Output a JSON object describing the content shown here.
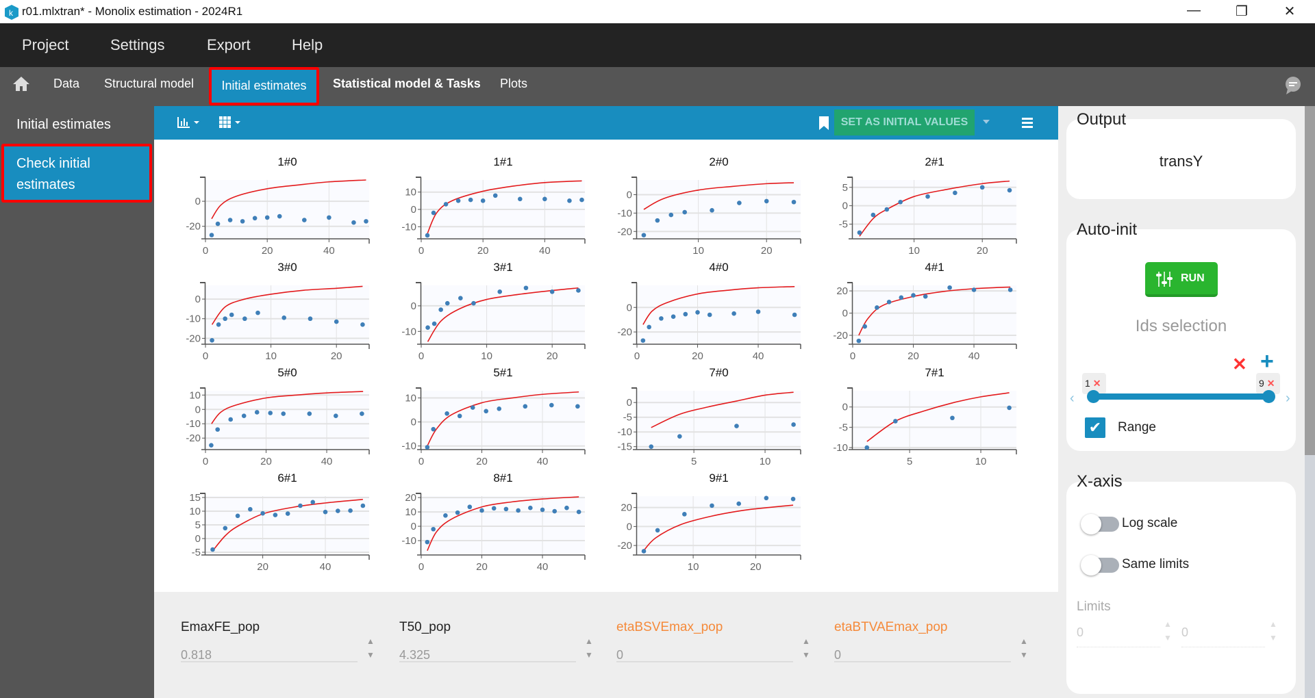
{
  "window": {
    "title": "r01.mlxtran* - Monolix estimation - 2024R1",
    "minimize": "—",
    "restore": "❐",
    "close": "✕"
  },
  "menu": [
    "Project",
    "Settings",
    "Export",
    "Help"
  ],
  "nav": {
    "home_icon": "home-icon",
    "items": [
      "Data",
      "Structural model",
      "Initial estimates",
      "Statistical model & Tasks",
      "Plots"
    ],
    "active": "Initial estimates"
  },
  "sidebar": {
    "title": "Initial estimates",
    "active_item": "Check initial estimates"
  },
  "toolbar": {
    "set_initial_label": "SET AS INITIAL VALUES",
    "colors": {
      "toolbar": "#188dbf",
      "set_button": "#21a46f"
    }
  },
  "params": [
    {
      "name": "EmaxFE_pop",
      "value": "0.818",
      "color": "#222222"
    },
    {
      "name": "T50_pop",
      "value": "4.325",
      "color": "#222222"
    },
    {
      "name": "etaBSVEmax_pop",
      "value": "0",
      "color": "#f58a3a"
    },
    {
      "name": "etaBTVAEmax_pop",
      "value": "0",
      "color": "#f58a3a"
    }
  ],
  "right": {
    "output": {
      "title": "Output",
      "value": "transY"
    },
    "autoinit": {
      "title": "Auto-init",
      "run": "RUN",
      "ids_title": "Ids selection",
      "range_min": "1",
      "range_max": "9",
      "range_label": "Range",
      "range_checked": true
    },
    "xaxis": {
      "title": "X-axis",
      "log_scale": "Log scale",
      "log_scale_on": false,
      "same_limits": "Same limits",
      "same_limits_on": false,
      "limits_label": "Limits",
      "limit_min": "0",
      "limit_max": "0"
    }
  },
  "chart_data": [
    {
      "type": "scatter",
      "title": "1#0",
      "xlim": [
        0,
        53
      ],
      "ylim": [
        -30,
        17
      ],
      "xticks": [
        0,
        20,
        40
      ],
      "yticks": [
        0,
        -20
      ],
      "points": [
        [
          2,
          -27
        ],
        [
          4,
          -18
        ],
        [
          8,
          -15
        ],
        [
          12,
          -16
        ],
        [
          16,
          -13.5
        ],
        [
          20,
          -13
        ],
        [
          24,
          -12
        ],
        [
          32,
          -15
        ],
        [
          40,
          -13
        ],
        [
          48,
          -17
        ],
        [
          52,
          -16
        ]
      ],
      "curve": [
        [
          2,
          -14
        ],
        [
          5,
          -3
        ],
        [
          10,
          4
        ],
        [
          20,
          10
        ],
        [
          30,
          13
        ],
        [
          40,
          15.5
        ],
        [
          52,
          17
        ]
      ]
    },
    {
      "type": "scatter",
      "title": "1#1",
      "xlim": [
        0,
        53
      ],
      "ylim": [
        -17,
        17
      ],
      "xticks": [
        0,
        20,
        40
      ],
      "yticks": [
        10,
        0,
        -10
      ],
      "points": [
        [
          2,
          -15
        ],
        [
          4,
          -2
        ],
        [
          8,
          3
        ],
        [
          12,
          5
        ],
        [
          16,
          5.5
        ],
        [
          20,
          5
        ],
        [
          24,
          8
        ],
        [
          32,
          6
        ],
        [
          40,
          6
        ],
        [
          48,
          5
        ],
        [
          52,
          5.5
        ]
      ],
      "curve": [
        [
          2,
          -14
        ],
        [
          5,
          -2
        ],
        [
          10,
          5
        ],
        [
          20,
          10.5
        ],
        [
          30,
          13.5
        ],
        [
          40,
          15.5
        ],
        [
          52,
          16.5
        ]
      ]
    },
    {
      "type": "scatter",
      "title": "2#0",
      "xlim": [
        1,
        25
      ],
      "ylim": [
        -24,
        8
      ],
      "xticks": [
        10,
        20
      ],
      "yticks": [
        0,
        -10,
        -20
      ],
      "points": [
        [
          2,
          -22
        ],
        [
          4,
          -14
        ],
        [
          6,
          -11
        ],
        [
          8,
          -9.5
        ],
        [
          12,
          -8.5
        ],
        [
          16,
          -4.5
        ],
        [
          20,
          -3.5
        ],
        [
          24,
          -4
        ]
      ],
      "curve": [
        [
          2,
          -8
        ],
        [
          5,
          -2
        ],
        [
          10,
          2.5
        ],
        [
          15,
          4.5
        ],
        [
          20,
          6
        ],
        [
          24,
          6.5
        ]
      ]
    },
    {
      "type": "scatter",
      "title": "2#1",
      "xlim": [
        1,
        25
      ],
      "ylim": [
        -9,
        7
      ],
      "xticks": [
        10,
        20
      ],
      "yticks": [
        5,
        0,
        -5
      ],
      "points": [
        [
          2,
          -7.3
        ],
        [
          4,
          -2.5
        ],
        [
          6,
          -1
        ],
        [
          8,
          1
        ],
        [
          12,
          2.5
        ],
        [
          16,
          3.5
        ],
        [
          20,
          5
        ],
        [
          24,
          4.2
        ]
      ],
      "curve": [
        [
          2,
          -8.3
        ],
        [
          4,
          -3.5
        ],
        [
          6,
          -1
        ],
        [
          10,
          2.5
        ],
        [
          15,
          4.5
        ],
        [
          20,
          6
        ],
        [
          24,
          6.7
        ]
      ]
    },
    {
      "type": "scatter",
      "title": "3#0",
      "xlim": [
        0,
        25
      ],
      "ylim": [
        -23,
        7
      ],
      "xticks": [
        0,
        10,
        20
      ],
      "yticks": [
        0,
        -10,
        -20
      ],
      "points": [
        [
          1,
          -21
        ],
        [
          2,
          -13
        ],
        [
          3,
          -10
        ],
        [
          4,
          -8
        ],
        [
          6,
          -10
        ],
        [
          8,
          -7
        ],
        [
          12,
          -9.5
        ],
        [
          16,
          -10
        ],
        [
          20,
          -11.5
        ],
        [
          24,
          -13
        ]
      ],
      "curve": [
        [
          1,
          -13
        ],
        [
          3,
          -4
        ],
        [
          6,
          0
        ],
        [
          10,
          2.5
        ],
        [
          15,
          4.5
        ],
        [
          20,
          5.5
        ],
        [
          24,
          6.5
        ]
      ]
    },
    {
      "type": "scatter",
      "title": "3#1",
      "xlim": [
        0,
        25
      ],
      "ylim": [
        -15,
        8
      ],
      "xticks": [
        0,
        10,
        20
      ],
      "yticks": [
        0,
        -10
      ],
      "points": [
        [
          1,
          -8.5
        ],
        [
          2,
          -7
        ],
        [
          3,
          -1.5
        ],
        [
          4,
          1
        ],
        [
          6,
          3
        ],
        [
          8,
          1
        ],
        [
          12,
          5.5
        ],
        [
          16,
          7
        ],
        [
          20,
          5.5
        ],
        [
          24,
          6
        ]
      ],
      "curve": [
        [
          1,
          -14
        ],
        [
          3,
          -6
        ],
        [
          6,
          -1
        ],
        [
          10,
          2.5
        ],
        [
          15,
          4.5
        ],
        [
          20,
          6
        ],
        [
          24,
          7
        ]
      ]
    },
    {
      "type": "scatter",
      "title": "4#0",
      "xlim": [
        0,
        54
      ],
      "ylim": [
        -30,
        18
      ],
      "xticks": [
        0,
        20,
        40
      ],
      "yticks": [
        0,
        -20
      ],
      "points": [
        [
          2,
          -27
        ],
        [
          4,
          -16
        ],
        [
          8,
          -9
        ],
        [
          12,
          -7.5
        ],
        [
          16,
          -5.5
        ],
        [
          20,
          -4
        ],
        [
          24,
          -6
        ],
        [
          32,
          -5
        ],
        [
          40,
          -3.5
        ],
        [
          52,
          -6
        ]
      ],
      "curve": [
        [
          2,
          -14
        ],
        [
          5,
          -3
        ],
        [
          10,
          4
        ],
        [
          20,
          11
        ],
        [
          30,
          14
        ],
        [
          40,
          16
        ],
        [
          52,
          17
        ]
      ]
    },
    {
      "type": "scatter",
      "title": "4#1",
      "xlim": [
        0,
        54
      ],
      "ylim": [
        -28,
        25
      ],
      "xticks": [
        0,
        20,
        40
      ],
      "yticks": [
        20,
        0,
        -20
      ],
      "points": [
        [
          2,
          -25
        ],
        [
          4,
          -12
        ],
        [
          8,
          5
        ],
        [
          12,
          10
        ],
        [
          16,
          14
        ],
        [
          20,
          16
        ],
        [
          24,
          15
        ],
        [
          32,
          23
        ],
        [
          40,
          21
        ],
        [
          52,
          21
        ]
      ],
      "curve": [
        [
          2,
          -20
        ],
        [
          5,
          -5
        ],
        [
          10,
          7
        ],
        [
          20,
          15
        ],
        [
          30,
          19.5
        ],
        [
          40,
          22
        ],
        [
          52,
          23.5
        ]
      ]
    },
    {
      "type": "scatter",
      "title": "5#0",
      "xlim": [
        0,
        54
      ],
      "ylim": [
        -28,
        13
      ],
      "xticks": [
        0,
        20,
        40
      ],
      "yticks": [
        10,
        0,
        -10,
        -20
      ],
      "points": [
        [
          1.9,
          -25
        ],
        [
          4,
          -14
        ],
        [
          8.3,
          -7
        ],
        [
          12.7,
          -4.5
        ],
        [
          17,
          -2
        ],
        [
          21.4,
          -2.5
        ],
        [
          25.7,
          -3
        ],
        [
          34.3,
          -3
        ],
        [
          43,
          -4.5
        ],
        [
          51.6,
          -3
        ]
      ],
      "curve": [
        [
          2,
          -10
        ],
        [
          5,
          -2
        ],
        [
          10,
          3
        ],
        [
          20,
          8
        ],
        [
          30,
          10
        ],
        [
          40,
          11.5
        ],
        [
          52,
          12.5
        ]
      ]
    },
    {
      "type": "scatter",
      "title": "5#1",
      "xlim": [
        0,
        54
      ],
      "ylim": [
        -11.5,
        13
      ],
      "xticks": [
        0,
        20,
        40
      ],
      "yticks": [
        10,
        0,
        -10
      ],
      "points": [
        [
          2,
          -10.5
        ],
        [
          4,
          -3
        ],
        [
          8.5,
          3.5
        ],
        [
          12.7,
          2.5
        ],
        [
          17,
          6
        ],
        [
          21.4,
          4.5
        ],
        [
          25.7,
          5.5
        ],
        [
          34.3,
          6.5
        ],
        [
          43,
          7
        ],
        [
          51.6,
          6.5
        ]
      ],
      "curve": [
        [
          2,
          -10
        ],
        [
          5,
          -3
        ],
        [
          10,
          3
        ],
        [
          20,
          8
        ],
        [
          30,
          10
        ],
        [
          40,
          11.5
        ],
        [
          52,
          12.5
        ]
      ]
    },
    {
      "type": "scatter",
      "title": "7#0",
      "xlim": [
        1,
        12.5
      ],
      "ylim": [
        -16,
        4
      ],
      "xticks": [
        5,
        10
      ],
      "yticks": [
        0,
        -5,
        -10,
        -15
      ],
      "points": [
        [
          2,
          -15
        ],
        [
          4,
          -11.5
        ],
        [
          8,
          -8
        ],
        [
          12,
          -7.5
        ]
      ],
      "curve": [
        [
          2,
          -8.5
        ],
        [
          4,
          -4
        ],
        [
          6,
          -1.5
        ],
        [
          8,
          0.5
        ],
        [
          10,
          2.5
        ],
        [
          12,
          3.5
        ]
      ]
    },
    {
      "type": "scatter",
      "title": "7#1",
      "xlim": [
        1,
        12.5
      ],
      "ylim": [
        -10.5,
        4
      ],
      "xticks": [
        5,
        10
      ],
      "yticks": [
        0,
        -5,
        -10
      ],
      "points": [
        [
          2,
          -10
        ],
        [
          4,
          -3.5
        ],
        [
          8,
          -2.7
        ],
        [
          12,
          -0.2
        ]
      ],
      "curve": [
        [
          2,
          -8.5
        ],
        [
          4,
          -3.5
        ],
        [
          6,
          -1
        ],
        [
          8,
          1
        ],
        [
          10,
          2.5
        ],
        [
          12,
          3.5
        ]
      ]
    },
    {
      "type": "scatter",
      "title": "6#1",
      "xlim": [
        1.7,
        54
      ],
      "ylim": [
        -6,
        15.5
      ],
      "xticks": [
        20,
        40
      ],
      "yticks": [
        15,
        10,
        5,
        0,
        -5
      ],
      "points": [
        [
          4,
          -4
        ],
        [
          8,
          3.8
        ],
        [
          12,
          8.3
        ],
        [
          16,
          10.7
        ],
        [
          20,
          9.2
        ],
        [
          24,
          8.6
        ],
        [
          28,
          9.1
        ],
        [
          32,
          12
        ],
        [
          36,
          13.3
        ],
        [
          40,
          9.7
        ],
        [
          44,
          10.1
        ],
        [
          48,
          10.2
        ],
        [
          52,
          12
        ]
      ],
      "curve": [
        [
          4,
          -4.5
        ],
        [
          8,
          1
        ],
        [
          12,
          4.5
        ],
        [
          20,
          9
        ],
        [
          30,
          11.5
        ],
        [
          40,
          13
        ],
        [
          52,
          14.3
        ]
      ]
    },
    {
      "type": "scatter",
      "title": "8#1",
      "xlim": [
        0,
        54
      ],
      "ylim": [
        -20,
        21
      ],
      "xticks": [
        0,
        20,
        40
      ],
      "yticks": [
        20,
        10,
        0,
        -10
      ],
      "points": [
        [
          2,
          -11
        ],
        [
          4,
          -2
        ],
        [
          8,
          7.5
        ],
        [
          12,
          9.5
        ],
        [
          16,
          13.5
        ],
        [
          20,
          11
        ],
        [
          24,
          12.5
        ],
        [
          28,
          12
        ],
        [
          32,
          11
        ],
        [
          36,
          12.8
        ],
        [
          40,
          11.5
        ],
        [
          44,
          10.5
        ],
        [
          48,
          12.8
        ],
        [
          52,
          10
        ]
      ],
      "curve": [
        [
          2,
          -17
        ],
        [
          5,
          -4
        ],
        [
          10,
          5
        ],
        [
          20,
          13.5
        ],
        [
          30,
          17
        ],
        [
          40,
          19
        ],
        [
          52,
          20.5
        ]
      ]
    },
    {
      "type": "scatter",
      "title": "9#1",
      "xlim": [
        1,
        27.2
      ],
      "ylim": [
        -30,
        32
      ],
      "xticks": [
        10,
        20
      ],
      "yticks": [
        20,
        0,
        -20
      ],
      "points": [
        [
          2.1,
          -26
        ],
        [
          4.3,
          -4
        ],
        [
          8.6,
          13
        ],
        [
          13,
          22
        ],
        [
          17.3,
          24
        ],
        [
          21.7,
          30
        ],
        [
          26,
          29
        ]
      ],
      "curve": [
        [
          2,
          -26
        ],
        [
          4,
          -12
        ],
        [
          8,
          2
        ],
        [
          13,
          11
        ],
        [
          18,
          17
        ],
        [
          22,
          20
        ],
        [
          26,
          22.5
        ]
      ]
    }
  ],
  "chart_colors": {
    "points": "#3f7fb8",
    "curve": "#e31a1c",
    "grid": "#e2e2e2",
    "background": "#fafbff"
  }
}
